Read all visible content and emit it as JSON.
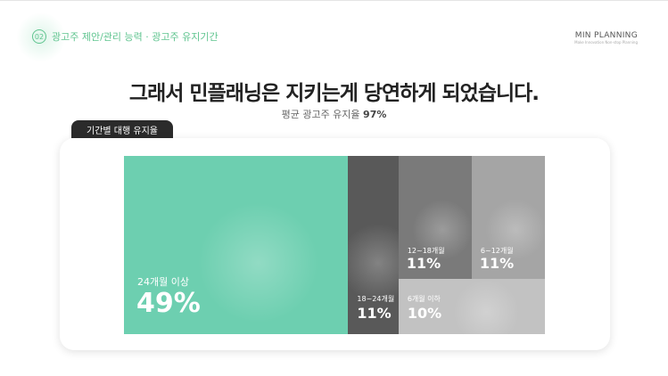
{
  "header": {
    "section_number": "02",
    "breadcrumb": "광고주 제안/관리 능력 · 광고주 유지기간",
    "brand_name": "MIN PLANNING",
    "brand_tagline": "Make Innovation Non-stop Planning"
  },
  "title": "그래서 민플래닝은 지키는게 당연하게 되었습니다.",
  "subtitle": {
    "text": "평균 광고주 유지율 ",
    "value": "97%"
  },
  "card_tab": "기간별 대행 유지율",
  "chart_data": {
    "type": "treemap",
    "categories": [
      "24개월 이상",
      "18~24개월",
      "12~18개월",
      "6~12개월",
      "6개월 이하"
    ],
    "values": [
      49,
      11,
      11,
      11,
      10
    ],
    "labels": [
      "49%",
      "11%",
      "11%",
      "11%",
      "10%"
    ],
    "colors": [
      "#6dcfb0",
      "#595959",
      "#7a7a7a",
      "#a5a5a5",
      "#c2c2c2"
    ]
  }
}
